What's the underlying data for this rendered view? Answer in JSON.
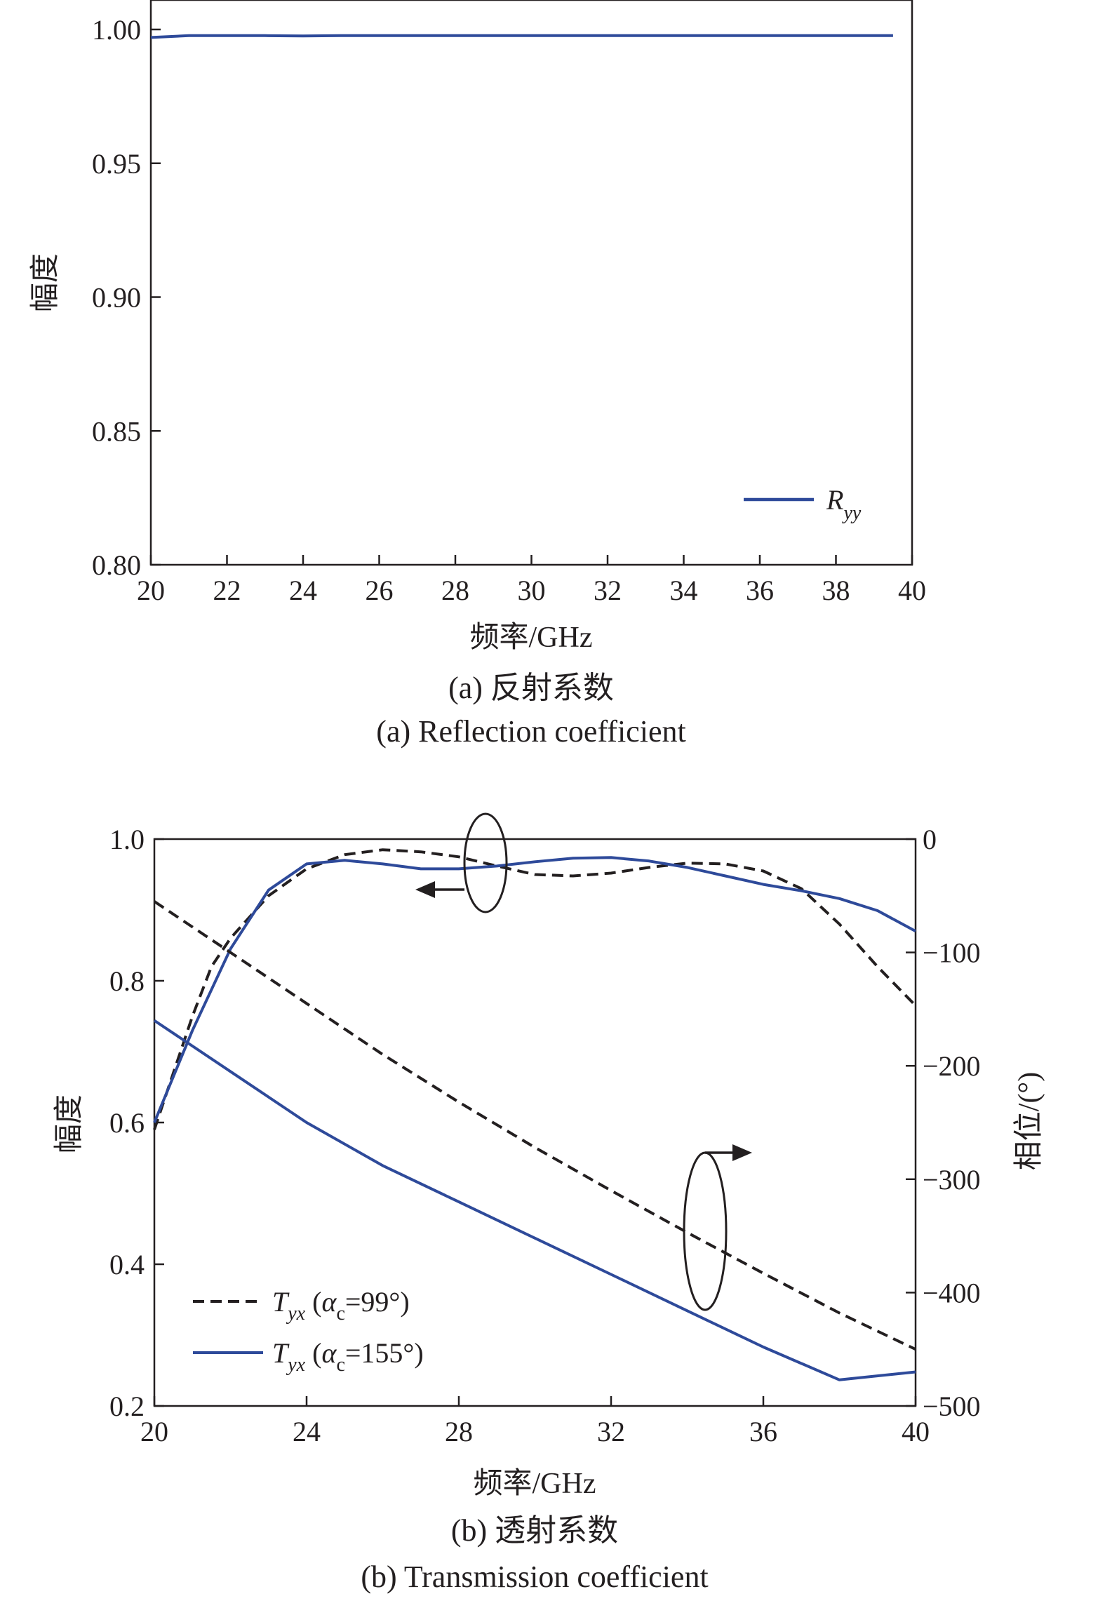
{
  "colors": {
    "axis": "#231f20",
    "blue_series": "#2e4a9a",
    "black_series": "#231f20"
  },
  "chart_data": [
    {
      "type": "line",
      "caption_cn": "(a) 反射系数",
      "caption_en": "(a) Reflection coefficient",
      "xlabel": "频率/GHz",
      "ylabel": "幅度",
      "xlim": [
        20,
        40
      ],
      "ylim": [
        0.8,
        1.0
      ],
      "xticks": [
        "20",
        "22",
        "24",
        "26",
        "28",
        "30",
        "32",
        "34",
        "36",
        "38",
        "40"
      ],
      "xtick_values": [
        20,
        22,
        24,
        26,
        28,
        30,
        32,
        34,
        36,
        38,
        40
      ],
      "yticks": [
        "0.80",
        "0.85",
        "0.90",
        "0.95",
        "1.00"
      ],
      "ytick_values": [
        0.8,
        0.85,
        0.9,
        0.95,
        1.0
      ],
      "legend_position": "bottom-right",
      "series": [
        {
          "name": "R",
          "name_subscript": "yy",
          "color": "#2e4a9a",
          "style": "solid",
          "axis": "left",
          "x": [
            20,
            21,
            22,
            23,
            24,
            25,
            26,
            28,
            30,
            32,
            34,
            36,
            38,
            39.5
          ],
          "y": [
            0.997,
            0.9977,
            0.9977,
            0.9977,
            0.9976,
            0.9977,
            0.9977,
            0.9977,
            0.9977,
            0.9977,
            0.9977,
            0.9977,
            0.9977,
            0.9977
          ]
        }
      ]
    },
    {
      "type": "line",
      "caption_cn": "(b) 透射系数",
      "caption_en": "(b) Transmission coefficient",
      "xlabel": "频率/GHz",
      "ylabel": "幅度",
      "ylabel_right": "相位/(°)",
      "xlim": [
        20,
        40
      ],
      "ylim": [
        0.2,
        1.0
      ],
      "ylim_right": [
        -500,
        0
      ],
      "xticks": [
        "20",
        "24",
        "28",
        "32",
        "36",
        "40"
      ],
      "xtick_values": [
        20,
        24,
        28,
        32,
        36,
        40
      ],
      "yticks": [
        "0.2",
        "0.4",
        "0.6",
        "0.8",
        "1.0"
      ],
      "ytick_values": [
        0.2,
        0.4,
        0.6,
        0.8,
        1.0
      ],
      "yticks_right": [
        "−500",
        "−400",
        "−300",
        "−200",
        "−100",
        "0"
      ],
      "ytick_values_right": [
        -500,
        -400,
        -300,
        -200,
        -100,
        0
      ],
      "legend_position": "bottom-left",
      "legend": [
        {
          "main": "T",
          "sub": "yx",
          "suffix_open": " (",
          "alpha": "α",
          "alpha_sub": "c",
          "suffix_close": "=99°)",
          "style": "dashed",
          "color": "#231f20"
        },
        {
          "main": "T",
          "sub": "yx",
          "suffix_open": " (",
          "alpha": "α",
          "alpha_sub": "c",
          "suffix_close": "=155°)",
          "style": "solid",
          "color": "#2e4a9a"
        }
      ],
      "series": [
        {
          "name": "T_yx (α_c=99°) amplitude",
          "color": "#231f20",
          "style": "dashed",
          "axis": "left",
          "x": [
            20,
            20.5,
            21,
            21.5,
            22,
            23,
            24,
            25,
            26,
            27,
            28,
            29,
            30,
            31,
            32,
            33,
            34,
            35,
            36,
            37,
            38,
            39,
            40
          ],
          "y": [
            0.59,
            0.67,
            0.75,
            0.82,
            0.86,
            0.92,
            0.958,
            0.978,
            0.985,
            0.982,
            0.975,
            0.962,
            0.95,
            0.948,
            0.952,
            0.96,
            0.966,
            0.965,
            0.955,
            0.93,
            0.88,
            0.82,
            0.765
          ]
        },
        {
          "name": "T_yx (α_c=155°) amplitude",
          "color": "#2e4a9a",
          "style": "solid",
          "axis": "left",
          "x": [
            20,
            21,
            22,
            23,
            24,
            25,
            26,
            27,
            28,
            29,
            30,
            31,
            32,
            33,
            34,
            35,
            36,
            37,
            38,
            39,
            40
          ],
          "y": [
            0.6,
            0.73,
            0.845,
            0.928,
            0.965,
            0.97,
            0.965,
            0.958,
            0.958,
            0.962,
            0.968,
            0.973,
            0.974,
            0.969,
            0.96,
            0.948,
            0.936,
            0.927,
            0.916,
            0.899,
            0.87
          ]
        },
        {
          "name": "T_yx (α_c=99°) phase",
          "color": "#231f20",
          "style": "dashed",
          "axis": "right",
          "x": [
            20,
            22,
            24,
            26,
            28,
            30,
            32,
            34,
            36,
            38,
            40
          ],
          "y": [
            -55,
            -100,
            -145,
            -190,
            -232,
            -272,
            -310,
            -347,
            -383,
            -418,
            -450
          ]
        },
        {
          "name": "T_yx (α_c=155°) phase",
          "color": "#2e4a9a",
          "style": "solid",
          "axis": "right",
          "x": [
            20,
            22,
            24,
            26,
            28,
            30,
            32,
            34,
            36,
            38,
            40
          ],
          "y": [
            -160,
            -205,
            -250,
            -288,
            -320,
            -352,
            -384,
            -416,
            -448,
            -477,
            -470
          ]
        }
      ]
    }
  ]
}
